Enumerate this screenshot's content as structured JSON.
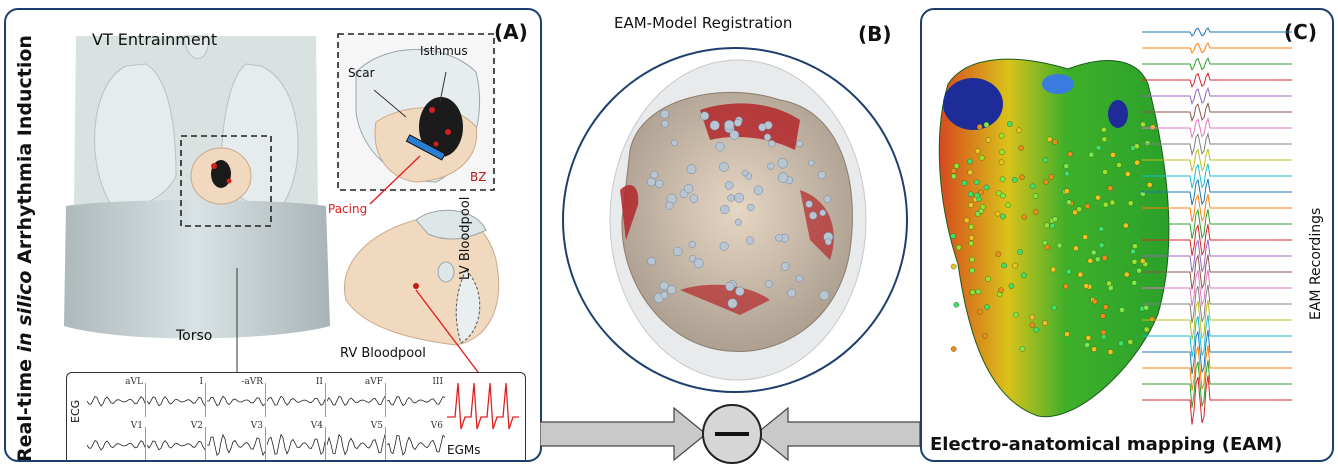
{
  "panel_a": {
    "label": "(A)",
    "title_prefix": "Real-time ",
    "title_italic": "in silico",
    "title_suffix": " Arrhythmia Induction",
    "vt_entrainment": "VT Entrainment",
    "torso": "Torso",
    "scar": "Scar",
    "isthmus": "Isthmus",
    "bz": "BZ",
    "pacing": "Pacing",
    "lv_bloodpool": "LV Bloodpool",
    "rv_bloodpool": "RV Bloodpool",
    "ecg_label": "ECG",
    "egms_label": "EGMs",
    "ecg_leads_top": [
      "aVL",
      "I",
      "-aVR",
      "II",
      "aVF",
      "III"
    ],
    "ecg_leads_bottom": [
      "V1",
      "V2",
      "V3",
      "V4",
      "V5",
      "V6"
    ]
  },
  "panel_b": {
    "label": "(B)",
    "title": "EAM-Model Registration"
  },
  "panel_c": {
    "label": "(C)",
    "title": "Electro-anatomical mapping (EAM)",
    "recordings": "EAM Recordings"
  },
  "colors": {
    "frame": "#1c3f6e",
    "accent_red": "#e02020",
    "tissue": "#f1d9bf",
    "lung": "#dfe6e8",
    "arrow_fill": "#c9c9c9"
  },
  "icons": {
    "comparator": "minus-circle-icon"
  }
}
